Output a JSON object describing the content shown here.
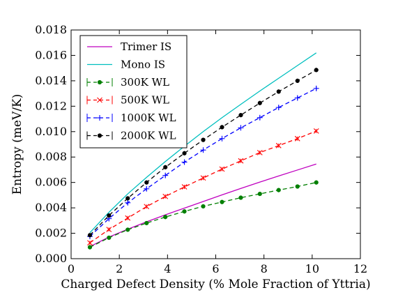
{
  "chart_data": {
    "type": "line",
    "title": "",
    "xlabel": "Charged Defect Density (% Mole Fraction of Yttria)",
    "ylabel": "Entropy (meV/K)",
    "xlim": [
      0,
      12
    ],
    "ylim": [
      0,
      0.018
    ],
    "x_ticks": [
      "0",
      "2",
      "4",
      "6",
      "8",
      "10",
      "12"
    ],
    "y_ticks": [
      "0.000",
      "0.002",
      "0.004",
      "0.006",
      "0.008",
      "0.010",
      "0.012",
      "0.014",
      "0.016",
      "0.018"
    ],
    "grid": false,
    "legend_position": "upper-left",
    "series": [
      {
        "name": "Trimer IS",
        "style": "solid",
        "color": "#bf00bf",
        "x": [
          0.78,
          1.57,
          2.35,
          3.13,
          3.91,
          4.7,
          5.48,
          6.26,
          7.04,
          7.83,
          8.61,
          9.39,
          10.17
        ],
        "y": [
          0.00095,
          0.0017,
          0.00232,
          0.0029,
          0.00345,
          0.00398,
          0.0045,
          0.00502,
          0.00553,
          0.00603,
          0.00651,
          0.00698,
          0.00745
        ]
      },
      {
        "name": "Mono IS",
        "style": "solid",
        "color": "#00bfbf",
        "x": [
          0.78,
          1.57,
          2.35,
          3.13,
          3.91,
          4.7,
          5.48,
          6.26,
          7.04,
          7.83,
          8.61,
          9.39,
          10.17
        ],
        "y": [
          0.00205,
          0.00365,
          0.0051,
          0.0064,
          0.00765,
          0.00885,
          0.01,
          0.0111,
          0.01215,
          0.0132,
          0.0142,
          0.0152,
          0.0162
        ]
      },
      {
        "name": "300K WL",
        "style": "dashed",
        "marker": "dot",
        "color": "#007f00",
        "x": [
          0.78,
          1.57,
          2.35,
          3.13,
          3.91,
          4.7,
          5.48,
          6.26,
          7.04,
          7.83,
          8.61,
          9.39,
          10.17
        ],
        "y": [
          0.0009,
          0.00165,
          0.00228,
          0.0028,
          0.00328,
          0.00372,
          0.00412,
          0.00446,
          0.0048,
          0.0051,
          0.0054,
          0.00568,
          0.006
        ]
      },
      {
        "name": "500K WL",
        "style": "dashed",
        "marker": "x",
        "color": "#ff0000",
        "x": [
          0.78,
          1.57,
          2.35,
          3.13,
          3.91,
          4.7,
          5.48,
          6.26,
          7.04,
          7.83,
          8.61,
          9.39,
          10.17
        ],
        "y": [
          0.00125,
          0.0023,
          0.0032,
          0.0041,
          0.0049,
          0.00565,
          0.00635,
          0.00705,
          0.0077,
          0.00835,
          0.0089,
          0.00945,
          0.01005
        ]
      },
      {
        "name": "1000K WL",
        "style": "dashed",
        "marker": "plus",
        "color": "#0000ff",
        "x": [
          0.78,
          1.57,
          2.35,
          3.13,
          3.91,
          4.7,
          5.48,
          6.26,
          7.04,
          7.83,
          8.61,
          9.39,
          10.17
        ],
        "y": [
          0.00175,
          0.00315,
          0.0044,
          0.0055,
          0.00655,
          0.0076,
          0.00855,
          0.00945,
          0.0103,
          0.0111,
          0.0119,
          0.01265,
          0.0134
        ]
      },
      {
        "name": "2000K WL",
        "style": "dashed",
        "marker": "dot",
        "color": "#000000",
        "x": [
          0.78,
          1.57,
          2.35,
          3.13,
          3.91,
          4.7,
          5.48,
          6.26,
          7.04,
          7.83,
          8.61,
          9.39,
          10.17
        ],
        "y": [
          0.00185,
          0.0034,
          0.00475,
          0.006,
          0.0072,
          0.0083,
          0.00935,
          0.01035,
          0.0113,
          0.01225,
          0.01315,
          0.014,
          0.01485
        ]
      }
    ]
  }
}
